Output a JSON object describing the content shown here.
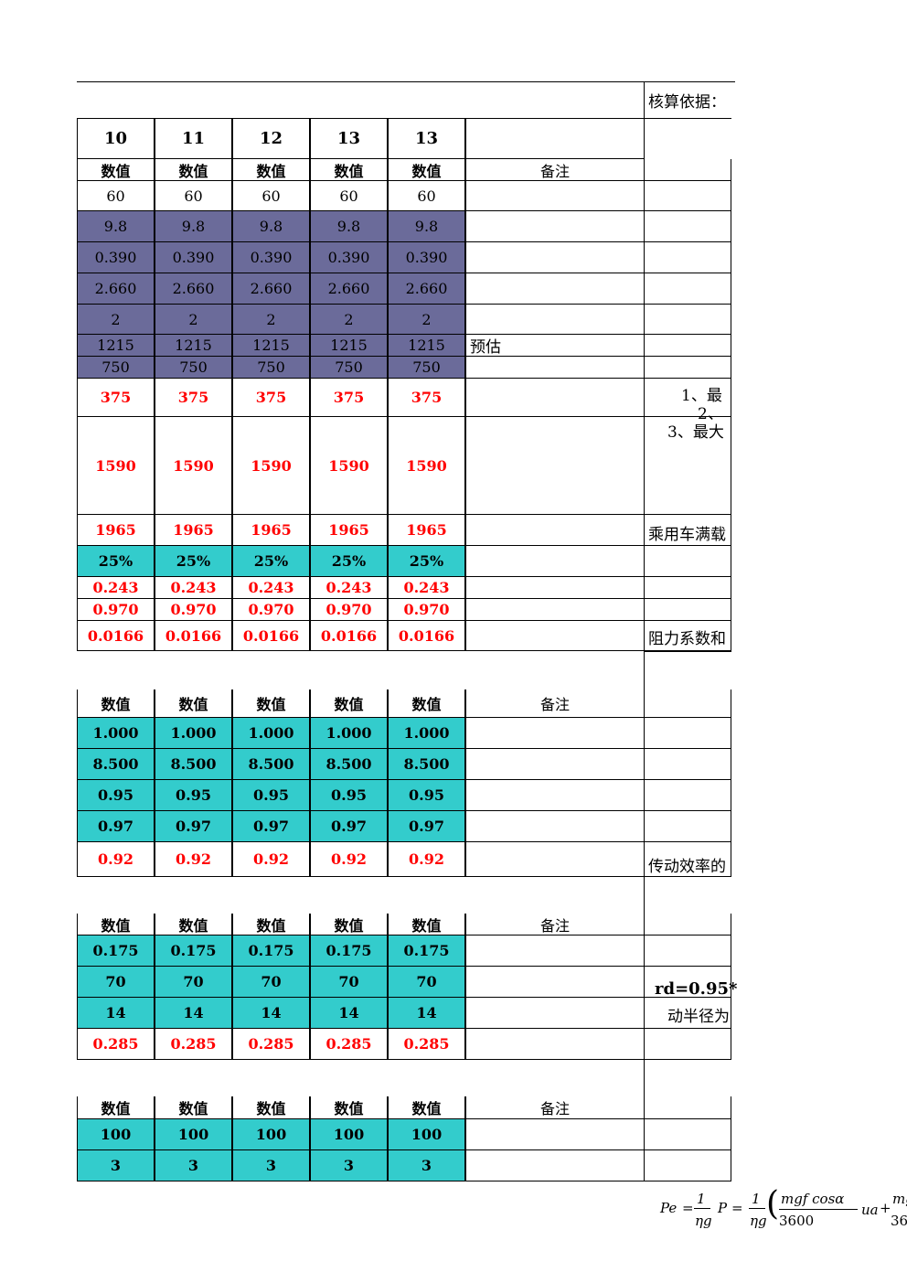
{
  "header": {
    "columns": [
      "10",
      "11",
      "12",
      "13",
      "13"
    ],
    "basis_label": "核算依据：",
    "value_label": "数值",
    "remark_label": "备注"
  },
  "section1": {
    "rows": [
      {
        "values": [
          "60",
          "60",
          "60",
          "60",
          "60"
        ],
        "style": "plain",
        "remark": ""
      },
      {
        "values": [
          "9.8",
          "9.8",
          "9.8",
          "9.8",
          "9.8"
        ],
        "style": "purple",
        "remark": ""
      },
      {
        "values": [
          "0.390",
          "0.390",
          "0.390",
          "0.390",
          "0.390"
        ],
        "style": "purple",
        "remark": ""
      },
      {
        "values": [
          "2.660",
          "2.660",
          "2.660",
          "2.660",
          "2.660"
        ],
        "style": "purple",
        "remark": ""
      },
      {
        "values": [
          "2",
          "2",
          "2",
          "2",
          "2"
        ],
        "style": "purple",
        "remark": ""
      },
      {
        "values": [
          "1215",
          "1215",
          "1215",
          "1215",
          "1215"
        ],
        "style": "purple",
        "remark": "预估"
      },
      {
        "values": [
          "750",
          "750",
          "750",
          "750",
          "750"
        ],
        "style": "purple",
        "remark": ""
      },
      {
        "values": [
          "375",
          "375",
          "375",
          "375",
          "375"
        ],
        "style": "red",
        "remark": ""
      },
      {
        "values": [
          "1590",
          "1590",
          "1590",
          "1590",
          "1590"
        ],
        "style": "red",
        "remark": ""
      },
      {
        "values": [
          "1965",
          "1965",
          "1965",
          "1965",
          "1965"
        ],
        "style": "red",
        "remark": ""
      },
      {
        "values": [
          "25%",
          "25%",
          "25%",
          "25%",
          "25%"
        ],
        "style": "teal",
        "remark": ""
      },
      {
        "values": [
          "0.243",
          "0.243",
          "0.243",
          "0.243",
          "0.243"
        ],
        "style": "redbold",
        "remark": ""
      },
      {
        "values": [
          "0.970",
          "0.970",
          "0.970",
          "0.970",
          "0.970"
        ],
        "style": "redbold",
        "remark": ""
      },
      {
        "values": [
          "0.0166",
          "0.0166",
          "0.0166",
          "0.0166",
          "0.0166"
        ],
        "style": "redbold",
        "remark": ""
      }
    ]
  },
  "section2": {
    "rows": [
      {
        "values": [
          "1.000",
          "1.000",
          "1.000",
          "1.000",
          "1.000"
        ],
        "style": "teal"
      },
      {
        "values": [
          "8.500",
          "8.500",
          "8.500",
          "8.500",
          "8.500"
        ],
        "style": "teal"
      },
      {
        "values": [
          "0.95",
          "0.95",
          "0.95",
          "0.95",
          "0.95"
        ],
        "style": "teal"
      },
      {
        "values": [
          "0.97",
          "0.97",
          "0.97",
          "0.97",
          "0.97"
        ],
        "style": "teal"
      },
      {
        "values": [
          "0.92",
          "0.92",
          "0.92",
          "0.92",
          "0.92"
        ],
        "style": "redbold"
      }
    ]
  },
  "section3": {
    "rows": [
      {
        "values": [
          "0.175",
          "0.175",
          "0.175",
          "0.175",
          "0.175"
        ],
        "style": "teal"
      },
      {
        "values": [
          "70",
          "70",
          "70",
          "70",
          "70"
        ],
        "style": "teal"
      },
      {
        "values": [
          "14",
          "14",
          "14",
          "14",
          "14"
        ],
        "style": "teal"
      },
      {
        "values": [
          "0.285",
          "0.285",
          "0.285",
          "0.285",
          "0.285"
        ],
        "style": "redbold"
      }
    ]
  },
  "section4": {
    "rows": [
      {
        "values": [
          "100",
          "100",
          "100",
          "100",
          "100"
        ],
        "style": "teal"
      },
      {
        "values": [
          "3",
          "3",
          "3",
          "3",
          "3"
        ],
        "style": "teal"
      }
    ]
  },
  "side_notes": {
    "note_1": "1、最",
    "note_2": "2、",
    "note_3": "3、最大",
    "full_load": "乘用车满载",
    "resistance": "阻力系数和",
    "efficiency": "传动效率的",
    "rd_formula": "rd=0.95*",
    "radius": "动半径为"
  },
  "formula": {
    "pe": "Pe",
    "eq": "=",
    "eta_g": "ηg",
    "p": "P",
    "numerator": "mgf cosα",
    "denominator": "3600",
    "ua": "ua",
    "plus": "+",
    "num2": "mg",
    "den2": "36"
  },
  "colors": {
    "purple": "#6b6b9a",
    "teal": "#33cccc",
    "red": "#ff0000"
  }
}
